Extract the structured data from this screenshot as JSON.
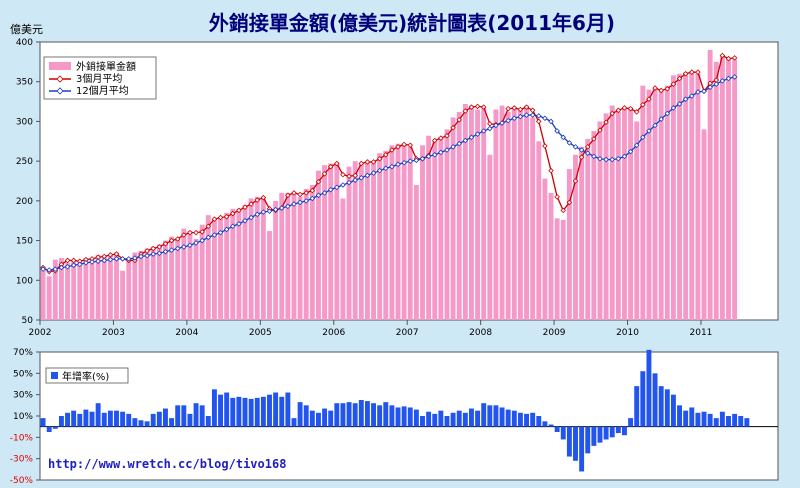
{
  "header": {
    "title": "外銷接單金額(億美元)統計圖表(2011年6月)",
    "unit_label": "億美元"
  },
  "footer": {
    "url": "http://www.wretch.cc/blog/tivo168"
  },
  "colors": {
    "background": "#cfe8f5",
    "bar": "#f59ac8",
    "ma3": "#cc0000",
    "ma12": "#1a3fc0",
    "growth_bar": "#2255ee"
  },
  "chart_data": [
    {
      "type": "bar",
      "title": "外銷接單金額(億美元)統計圖表(2011年6月)",
      "xlabel": "",
      "ylabel": "億美元",
      "ylim": [
        50,
        400
      ],
      "yticks": [
        "50",
        "100",
        "150",
        "200",
        "250",
        "300",
        "350",
        "400"
      ],
      "xticks": [
        "2002",
        "2003",
        "2004",
        "2005",
        "2006",
        "2007",
        "2008",
        "2009",
        "2010",
        "2011"
      ],
      "x_start": "2002-01",
      "x_end": "2011-06",
      "legend_position": "top-left",
      "grid": false,
      "series": [
        {
          "name": "外銷接單金額",
          "kind": "bar",
          "values": [
            117,
            105,
            126,
            128,
            122,
            125,
            124,
            128,
            128,
            132,
            130,
            133,
            135,
            112,
            128,
            135,
            137,
            140,
            142,
            145,
            150,
            155,
            152,
            165,
            162,
            152,
            170,
            182,
            178,
            178,
            185,
            190,
            190,
            195,
            203,
            205,
            203,
            162,
            200,
            210,
            210,
            210,
            205,
            215,
            220,
            238,
            245,
            247,
            248,
            203,
            243,
            250,
            248,
            248,
            250,
            260,
            263,
            270,
            272,
            270,
            268,
            220,
            270,
            282,
            275,
            280,
            290,
            305,
            312,
            322,
            320,
            315,
            318,
            258,
            315,
            320,
            312,
            318,
            316,
            320,
            305,
            275,
            228,
            210,
            178,
            176,
            240,
            258,
            268,
            278,
            288,
            300,
            310,
            320,
            312,
            318,
            318,
            300,
            345,
            340,
            340,
            338,
            345,
            358,
            360,
            362,
            363,
            360,
            290,
            390,
            375,
            383,
            378,
            378
          ]
        },
        {
          "name": "3個月平均",
          "kind": "line",
          "values": [
            116,
            111,
            112,
            120,
            125,
            125,
            124,
            126,
            127,
            129,
            130,
            132,
            133,
            127,
            125,
            125,
            133,
            137,
            140,
            142,
            146,
            150,
            152,
            157,
            160,
            160,
            161,
            168,
            177,
            179,
            180,
            184,
            188,
            192,
            196,
            201,
            204,
            190,
            188,
            191,
            207,
            210,
            208,
            210,
            213,
            224,
            234,
            243,
            247,
            233,
            231,
            232,
            247,
            249,
            249,
            253,
            258,
            264,
            268,
            271,
            270,
            253,
            253,
            257,
            276,
            279,
            282,
            292,
            302,
            313,
            318,
            319,
            318,
            297,
            296,
            298,
            316,
            317,
            315,
            318,
            314,
            300,
            269,
            238,
            205,
            188,
            198,
            225,
            255,
            268,
            278,
            289,
            299,
            310,
            314,
            317,
            316,
            312,
            321,
            328,
            342,
            339,
            341,
            347,
            354,
            360,
            362,
            362,
            338,
            348,
            352,
            383,
            379,
            380
          ]
        },
        {
          "name": "12個月平均",
          "kind": "line",
          "values": [
            114,
            113,
            114,
            116,
            117,
            119,
            120,
            122,
            123,
            124,
            125,
            126,
            127,
            127,
            127,
            128,
            130,
            131,
            133,
            134,
            136,
            138,
            140,
            142,
            144,
            147,
            150,
            154,
            157,
            160,
            164,
            168,
            171,
            175,
            179,
            183,
            186,
            187,
            189,
            191,
            193,
            196,
            198,
            200,
            203,
            207,
            210,
            214,
            217,
            220,
            223,
            226,
            229,
            232,
            235,
            238,
            241,
            243,
            246,
            248,
            250,
            251,
            253,
            256,
            258,
            261,
            264,
            268,
            272,
            276,
            280,
            284,
            288,
            291,
            295,
            298,
            301,
            304,
            306,
            308,
            308,
            307,
            304,
            300,
            288,
            280,
            273,
            268,
            264,
            260,
            256,
            253,
            252,
            252,
            253,
            256,
            262,
            270,
            280,
            288,
            295,
            303,
            310,
            317,
            322,
            328,
            332,
            337,
            338,
            343,
            347,
            351,
            354,
            356
          ]
        }
      ]
    },
    {
      "type": "bar",
      "title": "",
      "xlabel": "",
      "ylabel": "",
      "ylim": [
        -50,
        70
      ],
      "yticks": [
        "70%",
        "50%",
        "30%",
        "10%",
        "-10%",
        "-30%",
        "-50%"
      ],
      "legend_position": "top-left",
      "grid": false,
      "series": [
        {
          "name": "年增率(%)",
          "kind": "bar",
          "values": [
            8,
            -5,
            -2,
            10,
            13,
            15,
            12,
            16,
            14,
            22,
            13,
            15,
            15,
            14,
            12,
            8,
            6,
            5,
            12,
            14,
            17,
            8,
            20,
            20,
            12,
            22,
            20,
            10,
            35,
            30,
            32,
            27,
            28,
            27,
            26,
            27,
            28,
            30,
            32,
            28,
            32,
            8,
            23,
            20,
            15,
            13,
            17,
            15,
            22,
            22,
            23,
            22,
            25,
            24,
            22,
            20,
            23,
            20,
            18,
            19,
            18,
            16,
            10,
            14,
            12,
            15,
            10,
            13,
            15,
            13,
            17,
            15,
            22,
            20,
            20,
            18,
            16,
            15,
            13,
            12,
            13,
            10,
            5,
            2,
            -5,
            -12,
            -28,
            -32,
            -42,
            -25,
            -18,
            -15,
            -12,
            -10,
            -6,
            -8,
            8,
            38,
            52,
            72,
            50,
            38,
            35,
            30,
            20,
            15,
            18,
            13,
            14,
            12,
            8,
            14,
            10,
            12,
            10,
            8
          ]
        }
      ]
    }
  ]
}
